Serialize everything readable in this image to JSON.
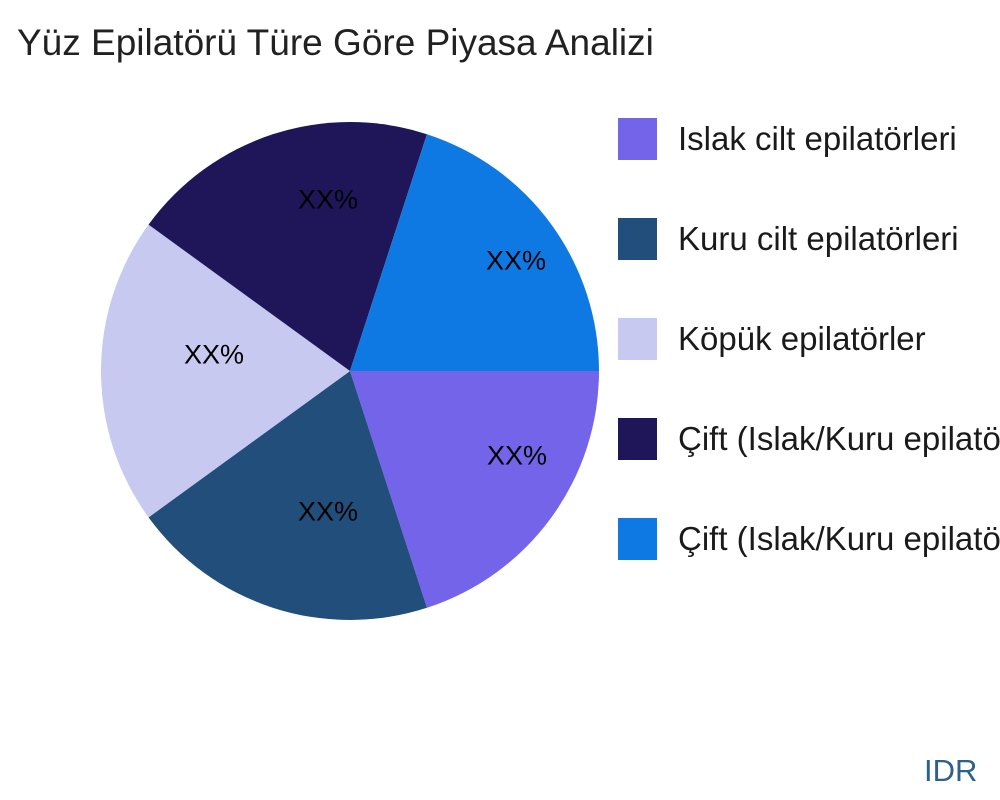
{
  "title": "Yüz Epilatörü Türe Göre Piyasa Analizi",
  "watermark": {
    "text": "IDR",
    "color": "#2e6089"
  },
  "chart_data": {
    "type": "pie",
    "title": "Yüz Epilatörü Türe Göre Piyasa Analizi",
    "start_angle_deg": 0,
    "direction": "clockwise",
    "legend_position": "right",
    "slices": [
      {
        "label": "Islak cilt epilatörleri",
        "value": 20,
        "pct_label": "XX%",
        "color": "#7364ea"
      },
      {
        "label": "Kuru cilt epilatörleri",
        "value": 20,
        "pct_label": "XX%",
        "color": "#214e7b"
      },
      {
        "label": "Köpük epilatörler",
        "value": 20,
        "pct_label": "XX%",
        "color": "#c7c9f0"
      },
      {
        "label": "Çift (Islak/Kuru epilatö",
        "value": 20,
        "pct_label": "XX%",
        "color": "#1e1659"
      },
      {
        "label": "Çift (Islak/Kuru epilatö",
        "value": 20,
        "pct_label": "XX%",
        "color": "#0f79e3"
      }
    ]
  }
}
